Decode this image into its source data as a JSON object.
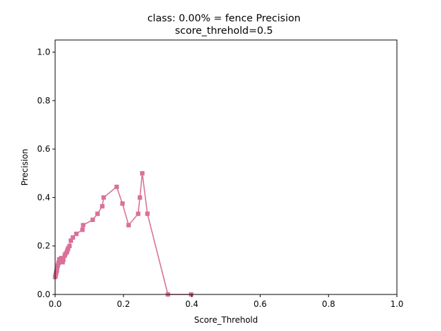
{
  "chart_data": {
    "type": "line",
    "title_line1": "class: 0.00% = fence Precision",
    "title_line2": "score_threhold=0.5",
    "xlabel": "Score_Threhold",
    "ylabel": "Precision",
    "xlim": [
      0.0,
      1.0
    ],
    "ylim": [
      0.0,
      1.05
    ],
    "xticks": [
      "0.0",
      "0.2",
      "0.4",
      "0.6",
      "0.8",
      "1.0"
    ],
    "yticks": [
      "0.0",
      "0.2",
      "0.4",
      "0.6",
      "0.8",
      "1.0"
    ],
    "grid": false,
    "legend": "none",
    "series": [
      {
        "color": "#d9719a",
        "marker": "square",
        "x": [
          0.398,
          0.33,
          0.27,
          0.255,
          0.248,
          0.243,
          0.215,
          0.197,
          0.18,
          0.142,
          0.138,
          0.124,
          0.11,
          0.082,
          0.08,
          0.062,
          0.052,
          0.046,
          0.042,
          0.038,
          0.036,
          0.034,
          0.03,
          0.028,
          0.024,
          0.022,
          0.018,
          0.016,
          0.012,
          0.01,
          0.008,
          0.006,
          0.005,
          0.004,
          0.003,
          0.002,
          0.001,
          0.0
        ],
        "y": [
          0.0,
          0.0,
          0.333,
          0.5,
          0.4,
          0.333,
          0.286,
          0.375,
          0.444,
          0.4,
          0.364,
          0.333,
          0.308,
          0.286,
          0.267,
          0.25,
          0.235,
          0.222,
          0.2,
          0.19,
          0.182,
          0.174,
          0.167,
          0.16,
          0.143,
          0.133,
          0.15,
          0.138,
          0.145,
          0.13,
          0.12,
          0.11,
          0.1,
          0.095,
          0.09,
          0.083,
          0.077,
          0.072
        ]
      }
    ]
  }
}
